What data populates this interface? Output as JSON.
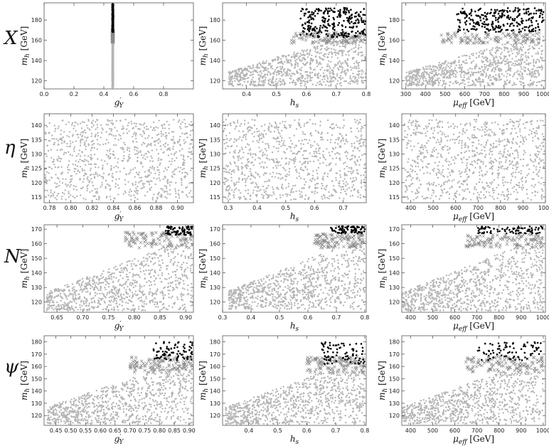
{
  "row_labels": [
    "X",
    "η",
    "N",
    "ψ"
  ],
  "chart_data": [
    {
      "type": "scatter",
      "row": 0,
      "col": 0,
      "xkey": "gY",
      "xlim": [
        0.0,
        1.0
      ],
      "xticks": [
        0.0,
        0.2,
        0.4,
        0.6,
        0.8
      ],
      "ylim": [
        112,
        197
      ],
      "yticks": [
        120,
        140,
        160,
        180
      ],
      "xlabel": "g′_Y",
      "ylabel": "m_h [GeV]",
      "series": [
        {
          "marker": "dot-grey",
          "values": {
            "x_center": 0.46,
            "x_spread": 0.008,
            "y_range": [
              113,
              168
            ]
          }
        },
        {
          "marker": "cross",
          "values": {
            "x_center": 0.46,
            "x_spread": 0.008,
            "y_range": [
              158,
              170
            ]
          }
        },
        {
          "marker": "dot-black",
          "values": {
            "x_center": 0.46,
            "x_spread": 0.008,
            "y_range": [
              168,
              196
            ]
          }
        }
      ]
    },
    {
      "type": "scatter",
      "row": 0,
      "col": 1,
      "xkey": "hs",
      "xlim": [
        0.32,
        0.8
      ],
      "xticks": [
        0.4,
        0.5,
        0.6,
        0.7,
        0.8
      ],
      "ylim": [
        112,
        197
      ],
      "yticks": [
        120,
        140,
        160,
        180
      ],
      "xlabel": "h_s",
      "ylabel": "m_h [GeV]",
      "series": [
        {
          "marker": "dot-grey",
          "values": {
            "x_range": [
              0.34,
              0.8
            ],
            "y_range": [
              115,
              170
            ]
          }
        },
        {
          "marker": "cross",
          "values": {
            "x_range": [
              0.55,
              0.8
            ],
            "y_range": [
              157,
              168
            ]
          }
        },
        {
          "marker": "dot-black",
          "values": {
            "x_range": [
              0.58,
              0.8
            ],
            "y_range": [
              163,
              192
            ]
          }
        }
      ]
    },
    {
      "type": "scatter",
      "row": 0,
      "col": 2,
      "xkey": "mu",
      "xlim": [
        280,
        1010
      ],
      "xticks": [
        300,
        400,
        500,
        600,
        700,
        800,
        900,
        1000
      ],
      "ylim": [
        112,
        197
      ],
      "yticks": [
        120,
        140,
        160,
        180
      ],
      "xlabel": "μ_eff [GeV]",
      "ylabel": "m_h [GeV]",
      "series": [
        {
          "marker": "dot-grey",
          "values": {
            "x_range": [
              300,
              1000
            ],
            "y_range": [
              115,
              168
            ]
          }
        },
        {
          "marker": "cross",
          "values": {
            "x_range": [
              480,
              980
            ],
            "y_range": [
              157,
              168
            ]
          }
        },
        {
          "marker": "dot-black",
          "values": {
            "x_range": [
              560,
              1000
            ],
            "y_range": [
              168,
              192
            ]
          }
        }
      ]
    },
    {
      "type": "scatter",
      "row": 1,
      "col": 0,
      "xkey": "gY",
      "xlim": [
        0.775,
        0.915
      ],
      "xticks": [
        0.78,
        0.8,
        0.82,
        0.84,
        0.86,
        0.88,
        0.9
      ],
      "ylim": [
        113,
        144
      ],
      "yticks": [
        115,
        120,
        125,
        130,
        135,
        140
      ],
      "xlabel": "g′_Y",
      "ylabel": "m_h [GeV]",
      "series": [
        {
          "marker": "dot-grey",
          "values": {
            "x_range": [
              0.775,
              0.915
            ],
            "y_range": [
              114,
              142
            ]
          }
        }
      ]
    },
    {
      "type": "scatter",
      "row": 1,
      "col": 1,
      "xkey": "hs",
      "xlim": [
        0.28,
        0.78
      ],
      "xticks": [
        0.3,
        0.4,
        0.5,
        0.6,
        0.7
      ],
      "ylim": [
        113,
        144
      ],
      "yticks": [
        115,
        120,
        125,
        130,
        135,
        140
      ],
      "xlabel": "h_s",
      "ylabel": "m_h [GeV]",
      "series": [
        {
          "marker": "dot-grey",
          "values": {
            "x_range": [
              0.28,
              0.78
            ],
            "y_range": [
              114,
              142
            ]
          }
        }
      ]
    },
    {
      "type": "scatter",
      "row": 1,
      "col": 2,
      "xkey": "mu",
      "xlim": [
        360,
        1000
      ],
      "xticks": [
        400,
        500,
        600,
        700,
        800,
        900,
        1000
      ],
      "ylim": [
        113,
        144
      ],
      "yticks": [
        115,
        120,
        125,
        130,
        135,
        140
      ],
      "xlabel": "μ_eff [GeV]",
      "ylabel": "m_h [GeV]",
      "series": [
        {
          "marker": "dot-grey",
          "values": {
            "x_range": [
              370,
              1000
            ],
            "y_range": [
              114,
              142
            ]
          }
        }
      ]
    },
    {
      "type": "scatter",
      "row": 2,
      "col": 0,
      "xkey": "gY",
      "xlim": [
        0.625,
        0.915
      ],
      "xticks": [
        0.65,
        0.7,
        0.75,
        0.8,
        0.85,
        0.9
      ],
      "ylim": [
        113,
        173
      ],
      "yticks": [
        120,
        130,
        140,
        150,
        160,
        170
      ],
      "xlabel": "g′_Y",
      "ylabel": "m_h [GeV]",
      "series": [
        {
          "marker": "dot-grey",
          "values": {
            "x_range": [
              0.63,
              0.915
            ],
            "y_range": [
              114,
              165
            ]
          }
        },
        {
          "marker": "cross",
          "values": {
            "x_range": [
              0.78,
              0.915
            ],
            "y_range": [
              157,
              168
            ]
          }
        },
        {
          "marker": "dot-black",
          "values": {
            "x_range": [
              0.86,
              0.915
            ],
            "y_range": [
              166,
              172
            ]
          }
        }
      ]
    },
    {
      "type": "scatter",
      "row": 2,
      "col": 1,
      "xkey": "hs",
      "xlim": [
        0.3,
        0.805
      ],
      "xticks": [
        0.3,
        0.4,
        0.5,
        0.6,
        0.7,
        0.8
      ],
      "ylim": [
        113,
        173
      ],
      "yticks": [
        120,
        130,
        140,
        150,
        160,
        170
      ],
      "xlabel": "h_s",
      "ylabel": "m_h [GeV]",
      "series": [
        {
          "marker": "dot-grey",
          "values": {
            "x_range": [
              0.32,
              0.8
            ],
            "y_range": [
              115,
              165
            ]
          }
        },
        {
          "marker": "cross",
          "values": {
            "x_range": [
              0.62,
              0.8
            ],
            "y_range": [
              157,
              167
            ]
          }
        },
        {
          "marker": "dot-black",
          "values": {
            "x_range": [
              0.68,
              0.8
            ],
            "y_range": [
              167,
              172
            ]
          }
        }
      ]
    },
    {
      "type": "scatter",
      "row": 2,
      "col": 2,
      "xkey": "mu",
      "xlim": [
        360,
        1010
      ],
      "xticks": [
        400,
        500,
        600,
        700,
        800,
        900,
        1000
      ],
      "ylim": [
        113,
        173
      ],
      "yticks": [
        120,
        130,
        140,
        150,
        160,
        170
      ],
      "xlabel": "μ_eff [GeV]",
      "ylabel": "m_h [GeV]",
      "series": [
        {
          "marker": "dot-grey",
          "values": {
            "x_range": [
              360,
              1000
            ],
            "y_range": [
              114,
              165
            ]
          }
        },
        {
          "marker": "cross",
          "values": {
            "x_range": [
              650,
              1000
            ],
            "y_range": [
              157,
              167
            ]
          }
        },
        {
          "marker": "dot-black",
          "values": {
            "x_range": [
              700,
              1000
            ],
            "y_range": [
              167,
              172
            ]
          }
        }
      ]
    },
    {
      "type": "scatter",
      "row": 3,
      "col": 0,
      "xkey": "gY",
      "xlim": [
        0.41,
        0.915
      ],
      "xticks": [
        0.45,
        0.5,
        0.55,
        0.6,
        0.65,
        0.7,
        0.75,
        0.8,
        0.85,
        0.9
      ],
      "ylim": [
        112,
        185
      ],
      "yticks": [
        120,
        130,
        140,
        150,
        160,
        170,
        180
      ],
      "xlabel": "g′_Y",
      "ylabel": "m_h [GeV]",
      "series": [
        {
          "marker": "dot-grey",
          "values": {
            "x_range": [
              0.42,
              0.915
            ],
            "y_range": [
              113,
              168
            ]
          }
        },
        {
          "marker": "cross",
          "values": {
            "x_range": [
              0.7,
              0.915
            ],
            "y_range": [
              155,
              168
            ]
          }
        },
        {
          "marker": "dot-black",
          "values": {
            "x_range": [
              0.78,
              0.915
            ],
            "y_range": [
              165,
              180
            ]
          }
        }
      ]
    },
    {
      "type": "scatter",
      "row": 3,
      "col": 1,
      "xkey": "hs",
      "xlim": [
        0.31,
        0.805
      ],
      "xticks": [
        0.4,
        0.5,
        0.6,
        0.7,
        0.8
      ],
      "ylim": [
        112,
        185
      ],
      "yticks": [
        120,
        130,
        140,
        150,
        160,
        170,
        180
      ],
      "xlabel": "h_s",
      "ylabel": "m_h [GeV]",
      "series": [
        {
          "marker": "dot-grey",
          "values": {
            "x_range": [
              0.32,
              0.8
            ],
            "y_range": [
              113,
              168
            ]
          }
        },
        {
          "marker": "cross",
          "values": {
            "x_range": [
              0.6,
              0.8
            ],
            "y_range": [
              155,
              168
            ]
          }
        },
        {
          "marker": "dot-black",
          "values": {
            "x_range": [
              0.65,
              0.8
            ],
            "y_range": [
              162,
              180
            ]
          }
        }
      ]
    },
    {
      "type": "scatter",
      "row": 3,
      "col": 2,
      "xkey": "mu",
      "xlim": [
        360,
        1010
      ],
      "xticks": [
        400,
        500,
        600,
        700,
        800,
        900,
        1000
      ],
      "ylim": [
        112,
        185
      ],
      "yticks": [
        120,
        130,
        140,
        150,
        160,
        170,
        180
      ],
      "xlabel": "μ_eff [GeV]",
      "ylabel": "m_h [GeV]",
      "series": [
        {
          "marker": "dot-grey",
          "values": {
            "x_range": [
              360,
              1000
            ],
            "y_range": [
              113,
              168
            ]
          }
        },
        {
          "marker": "cross",
          "values": {
            "x_range": [
              650,
              1000
            ],
            "y_range": [
              155,
              168
            ]
          }
        },
        {
          "marker": "dot-black",
          "values": {
            "x_range": [
              700,
              1000
            ],
            "y_range": [
              165,
              180
            ]
          }
        }
      ]
    }
  ]
}
